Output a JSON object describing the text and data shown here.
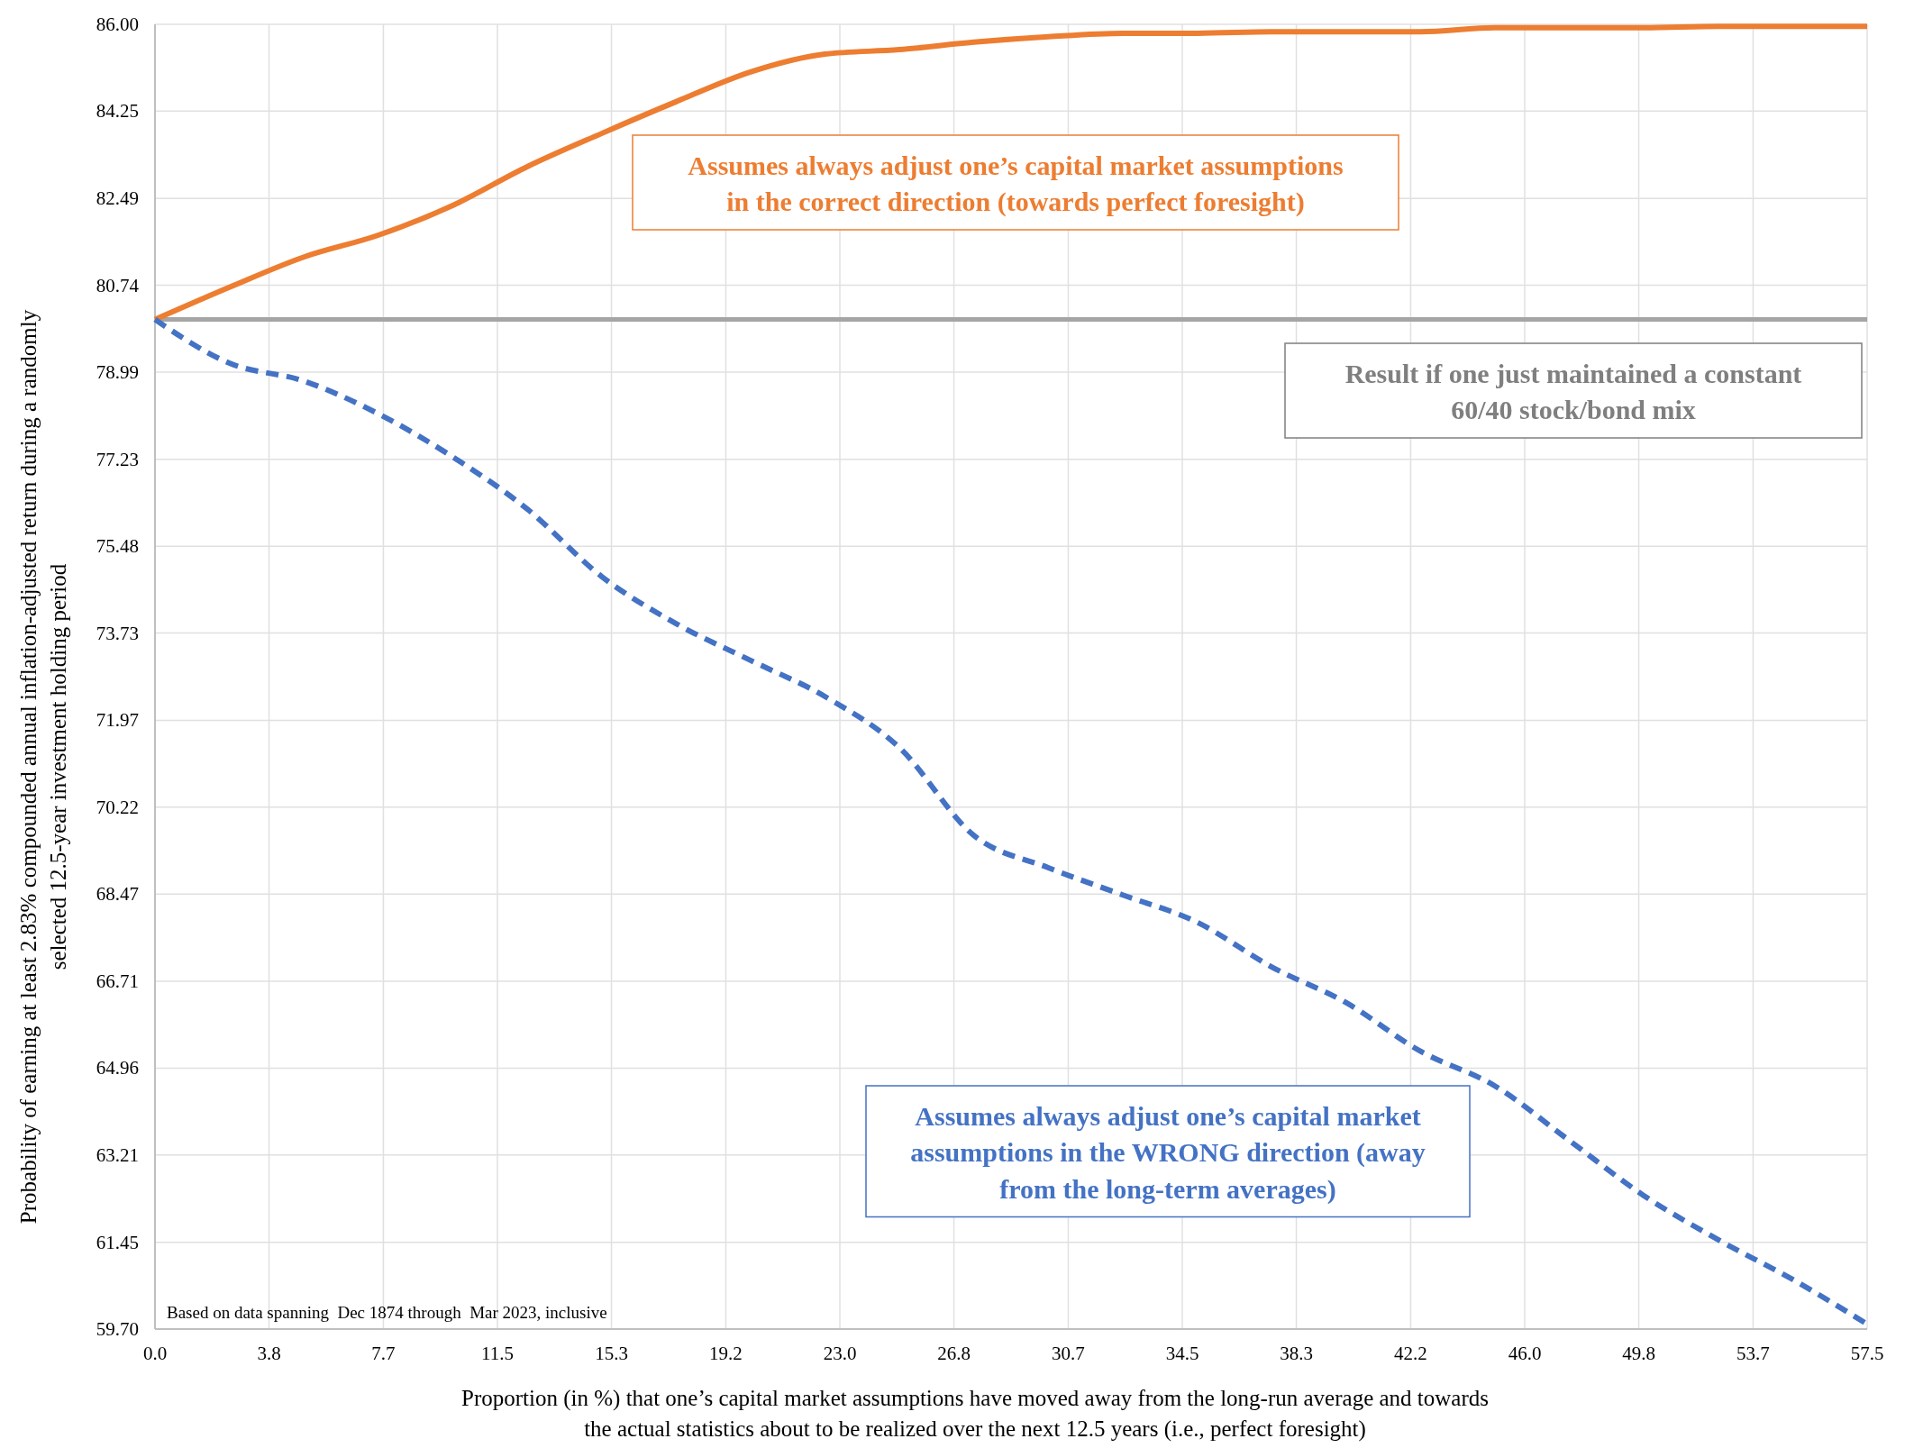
{
  "chart_data": {
    "type": "line",
    "xlabel": "Proportion (in %) that one’s capital market assumptions have moved away from the long-run average and towards the actual statistics about to be realized over the next 12.5 years (i.e., perfect foresight)",
    "ylabel": "Probability of earning at least 2.83% compounded annual inflation-adjusted return during a randomly selected 12.5-year investment holding period",
    "x": [
      0,
      2.5,
      5,
      7.5,
      10,
      12.5,
      15,
      17.5,
      20,
      22.5,
      25,
      27.5,
      30,
      32.5,
      35,
      37.5,
      40,
      42.5,
      45,
      47.5,
      50,
      52.5,
      55,
      57.5
    ],
    "series": [
      {
        "name": "Assumes always adjust one’s capital market assumptions in the correct direction (towards perfect foresight)",
        "color": "#ed7d31",
        "line_style": "solid",
        "values": [
          80.05,
          80.7,
          81.31,
          81.75,
          82.35,
          83.13,
          83.8,
          84.44,
          85.04,
          85.4,
          85.49,
          85.64,
          85.75,
          85.82,
          85.82,
          85.85,
          85.85,
          85.85,
          85.93,
          85.93,
          85.93,
          85.96,
          85.96,
          85.96
        ]
      },
      {
        "name": "Assumes always adjust one’s capital market assumptions in the WRONG direction (away from the long-term averages)",
        "color": "#4472c4",
        "line_style": "dashed",
        "values": [
          80.05,
          79.17,
          78.81,
          78.15,
          77.28,
          76.23,
          74.87,
          73.92,
          73.18,
          72.45,
          71.42,
          69.65,
          69.0,
          68.45,
          67.9,
          67.0,
          66.28,
          65.3,
          64.6,
          63.5,
          62.39,
          61.5,
          60.7,
          59.8
        ]
      }
    ],
    "ref_lines": [
      {
        "axis": "y",
        "value": 80.05,
        "label": "Result if one just maintained a constant 60/40 stock/bond mix",
        "color": "#a5a5a5"
      }
    ],
    "annotations": [
      "Based on data spanning  Dec 1874 through  Mar 2023, inclusive"
    ],
    "xlim": [
      0,
      57.5
    ],
    "xticks": [
      {
        "value": 0,
        "label": "0.0"
      },
      {
        "value": 3.83,
        "label": "3.8"
      },
      {
        "value": 7.67,
        "label": "7.7"
      },
      {
        "value": 11.5,
        "label": "11.5"
      },
      {
        "value": 15.33,
        "label": "15.3"
      },
      {
        "value": 19.17,
        "label": "19.2"
      },
      {
        "value": 23,
        "label": "23.0"
      },
      {
        "value": 26.83,
        "label": "26.8"
      },
      {
        "value": 30.67,
        "label": "30.7"
      },
      {
        "value": 34.5,
        "label": "34.5"
      },
      {
        "value": 38.33,
        "label": "38.3"
      },
      {
        "value": 42.17,
        "label": "42.2"
      },
      {
        "value": 46,
        "label": "46.0"
      },
      {
        "value": 49.83,
        "label": "49.8"
      },
      {
        "value": 53.67,
        "label": "53.7"
      },
      {
        "value": 57.5,
        "label": "57.5"
      }
    ],
    "ylim": [
      59.7,
      86
    ],
    "yticks": [
      {
        "value": 59.7,
        "label": "59.70"
      },
      {
        "value": 61.45,
        "label": "61.45"
      },
      {
        "value": 63.21,
        "label": "63.21"
      },
      {
        "value": 64.96,
        "label": "64.96"
      },
      {
        "value": 66.71,
        "label": "66.71"
      },
      {
        "value": 68.47,
        "label": "68.47"
      },
      {
        "value": 70.22,
        "label": "70.22"
      },
      {
        "value": 71.97,
        "label": "71.97"
      },
      {
        "value": 73.73,
        "label": "73.73"
      },
      {
        "value": 75.48,
        "label": "75.48"
      },
      {
        "value": 77.23,
        "label": "77.23"
      },
      {
        "value": 78.99,
        "label": "78.99"
      },
      {
        "value": 80.74,
        "label": "80.74"
      },
      {
        "value": 82.49,
        "label": "82.49"
      },
      {
        "value": 84.25,
        "label": "84.25"
      },
      {
        "value": 86,
        "label": "86.00"
      }
    ],
    "grid": true
  }
}
